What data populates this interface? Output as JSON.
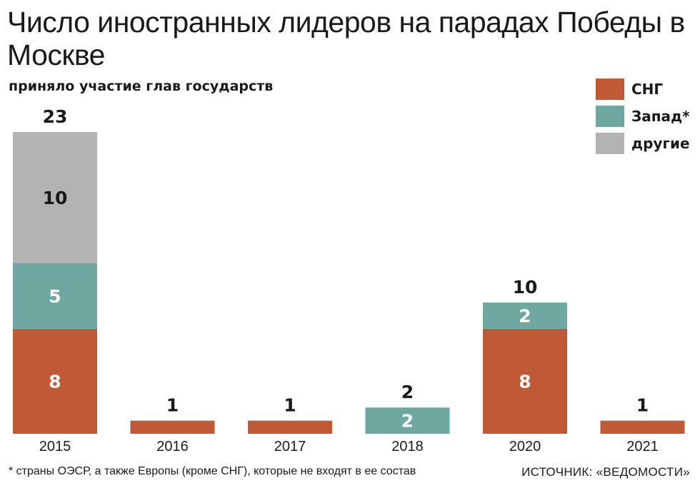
{
  "chart_data": {
    "type": "bar",
    "stacked": true,
    "title": "Число иностранных лидеров на парадах Победы в Москве",
    "subtitle": "приняло участие глав государств",
    "categories": [
      "2015",
      "2016",
      "2017",
      "2018",
      "2020",
      "2021"
    ],
    "series": [
      {
        "name": "СНГ",
        "color": "#c05a36",
        "values": [
          8,
          1,
          1,
          0,
          8,
          1
        ]
      },
      {
        "name": "Запад*",
        "color": "#6ea8a0",
        "values": [
          5,
          0,
          0,
          2,
          2,
          0
        ]
      },
      {
        "name": "другие",
        "color": "#b3b3b3",
        "values": [
          10,
          0,
          0,
          0,
          0,
          0
        ]
      }
    ],
    "totals": [
      "23",
      "1",
      "1",
      "2",
      "10",
      "1"
    ],
    "ylim": [
      0,
      23
    ],
    "grid": false,
    "legend_position": "top-right"
  },
  "footnote": "* страны ОЭСР, а также Европы (кроме СНГ), которые не входят в ее состав",
  "source": "ИСТОЧНИК: «ВЕДОМОСТИ»"
}
